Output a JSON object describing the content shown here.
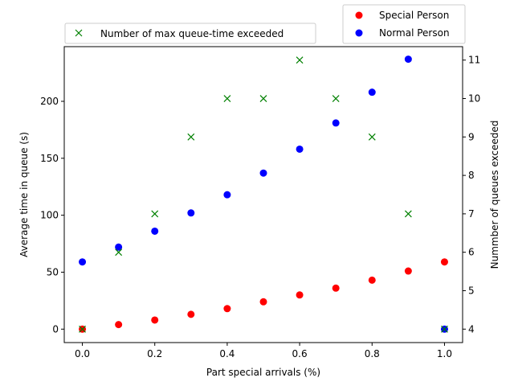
{
  "chart_data": {
    "type": "scatter",
    "xlabel": "Part special arrivals (%)",
    "ylabel": "Average time in queue (s)",
    "y2label": "Nummber of queues exceeded",
    "xlim": [
      -0.05,
      1.05
    ],
    "ylim": [
      -11.8,
      248
    ],
    "y2lim": [
      3.65,
      11.35
    ],
    "x_ticks": [
      "0.0",
      "0.2",
      "0.4",
      "0.6",
      "0.8",
      "1.0"
    ],
    "y_ticks": [
      "0",
      "50",
      "100",
      "150",
      "200"
    ],
    "y2_ticks": [
      "4",
      "5",
      "6",
      "7",
      "8",
      "9",
      "10",
      "11"
    ],
    "grid": false,
    "x": [
      0.0,
      0.1,
      0.2,
      0.3,
      0.4,
      0.5,
      0.6,
      0.7,
      0.8,
      0.9,
      1.0
    ],
    "series": [
      {
        "name": "Special Person",
        "axis": "left",
        "marker": "circle",
        "color": "#ff0000",
        "values": [
          0,
          4,
          8,
          13,
          18,
          24,
          30,
          36,
          43,
          51,
          59
        ]
      },
      {
        "name": "Normal Person",
        "axis": "left",
        "marker": "circle",
        "color": "#0000ff",
        "values": [
          59,
          72,
          86,
          102,
          118,
          137,
          158,
          181,
          208,
          237,
          0
        ]
      },
      {
        "name": "Number of max queue-time exceeded",
        "axis": "right",
        "marker": "x",
        "color": "#008000",
        "values": [
          4,
          6,
          7,
          9,
          10,
          10,
          11,
          10,
          9,
          7,
          4
        ]
      }
    ],
    "legend_left_position": "top-left, above plot",
    "legend_right_position": "top-right, above plot"
  }
}
